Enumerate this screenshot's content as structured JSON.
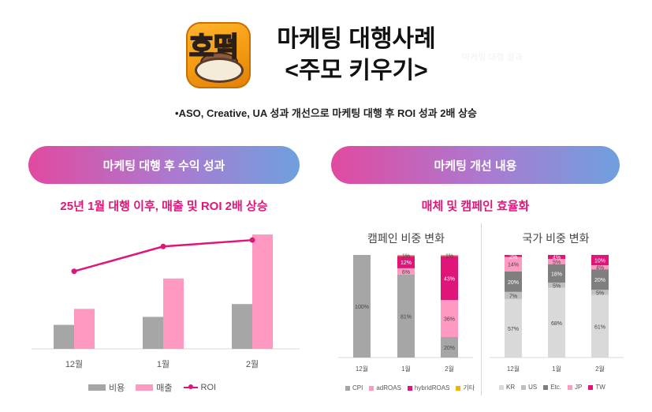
{
  "header": {
    "app_icon_text": "호떡",
    "title_line1": "마케팅 대행사례",
    "title_line2": "<주모 키우기>",
    "watermark": "마케팅 대행 성과",
    "summary": "•ASO, Creative, UA 성과 개선으로 마케팅 대행 후 ROI 성과 2배 상승"
  },
  "left_section": {
    "pill": "마케팅 대행 후 수익 성과",
    "subhead": "25년 1월 대행 이후, 매출 및 ROI 2배 상승"
  },
  "right_section": {
    "pill": "마케팅 개선 내용",
    "subhead": "매체 및 캠페인 효율화",
    "campaign_title": "캠페인 비중 변화",
    "country_title": "국가 비중 변화"
  },
  "colors": {
    "cost": "#a6a6a6",
    "revenue": "#ff99c2",
    "roi": "#e0157a",
    "pill_gradient_start": "#e14aa0",
    "pill_gradient_end": "#6fa0de",
    "accent_text": "#e2157a"
  },
  "chart_data": [
    {
      "type": "bar",
      "categories": [
        "12월",
        "1월",
        "2월"
      ],
      "series": [
        {
          "name": "비용",
          "type": "bar",
          "color": "#a6a6a6",
          "values": [
            30,
            40,
            56
          ]
        },
        {
          "name": "매출",
          "type": "bar",
          "color": "#ff99c2",
          "values": [
            50,
            88,
            143
          ]
        },
        {
          "name": "ROI",
          "type": "line",
          "color": "#e0157a",
          "values": [
            97,
            128,
            136
          ]
        }
      ],
      "ylim": [
        0,
        150
      ],
      "grid": false,
      "legend": "bottom"
    },
    {
      "type": "bar",
      "stacked": true,
      "title": "캠페인 비중 변화",
      "categories": [
        "12월",
        "1월",
        "2월"
      ],
      "series": [
        {
          "name": "CPI",
          "color": "#a6a6a6",
          "values": [
            100,
            81,
            20
          ],
          "labels": [
            "100%",
            "81%",
            "20%"
          ]
        },
        {
          "name": "adROAS",
          "color": "#ff99c2",
          "values": [
            0,
            6,
            36
          ],
          "labels": [
            "",
            "6%",
            "36%"
          ]
        },
        {
          "name": "hybridROAS",
          "color": "#e0157a",
          "values": [
            0,
            12,
            43
          ],
          "labels": [
            "",
            "12%",
            "43%"
          ]
        },
        {
          "name": "기타",
          "color": "#f5b400",
          "values": [
            0,
            1,
            1
          ],
          "labels": [
            "",
            "1%",
            "1%"
          ]
        }
      ],
      "ylim": [
        0,
        100
      ],
      "legend": "bottom"
    },
    {
      "type": "bar",
      "stacked": true,
      "title": "국가 비중 변화",
      "categories": [
        "12월",
        "1월",
        "2월"
      ],
      "series": [
        {
          "name": "KR",
          "color": "#d9d9d9",
          "values": [
            57,
            68,
            61
          ],
          "labels": [
            "57%",
            "68%",
            "61%"
          ]
        },
        {
          "name": "US",
          "color": "#bfbfbf",
          "values": [
            7,
            5,
            5
          ],
          "labels": [
            "7%",
            "5%",
            "5%"
          ]
        },
        {
          "name": "Etc.",
          "color": "#7f7f7f",
          "values": [
            20,
            18,
            20
          ],
          "labels": [
            "20%",
            "18%",
            "20%"
          ]
        },
        {
          "name": "JP",
          "color": "#ff99c2",
          "values": [
            14,
            5,
            4
          ],
          "labels": [
            "14%",
            "5%",
            "4%"
          ]
        },
        {
          "name": "TW",
          "color": "#e0157a",
          "values": [
            2,
            4,
            10
          ],
          "labels": [
            "2%",
            "4%",
            "10%"
          ]
        }
      ],
      "ylim": [
        0,
        100
      ],
      "legend": "bottom"
    }
  ]
}
